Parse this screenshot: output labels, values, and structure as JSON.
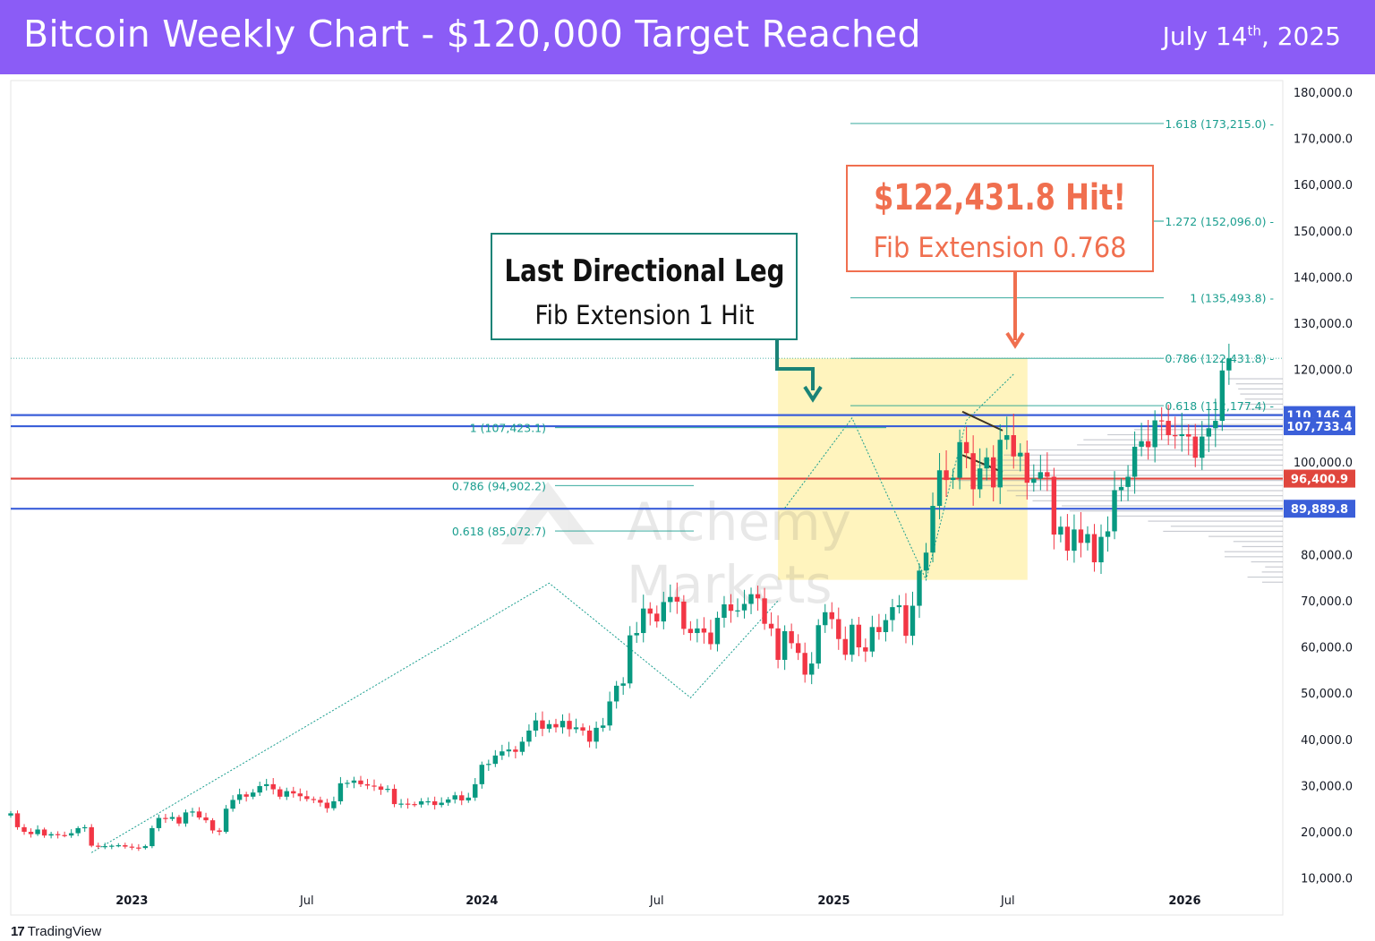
{
  "header": {
    "title": "Bitcoin Weekly Chart - $120,000 Target Reached",
    "date_main": "July 14",
    "date_sup": "th",
    "date_year": ", 2025",
    "background": "#8b5cf6"
  },
  "footer": {
    "logo": "17",
    "brand": "TradingView"
  },
  "watermark": {
    "line1": "Alchemy",
    "line2": "Markets"
  },
  "annotations": {
    "left": {
      "title": "Last Directional Leg",
      "subtitle": "Fib Extension 1 Hit",
      "color": "#1a8377"
    },
    "right": {
      "title": "$122,431.8 Hit!",
      "subtitle": "Fib Extension 0.768",
      "color": "#f06f4f"
    }
  },
  "chart_data": {
    "type": "candlestick",
    "x_ticks": [
      "2023",
      "Jul",
      "2024",
      "Jul",
      "2025",
      "Jul",
      "2026"
    ],
    "y_ticks": [
      "10,000.0",
      "20,000.0",
      "30,000.0",
      "40,000.0",
      "50,000.0",
      "60,000.0",
      "70,000.0",
      "80,000.0",
      "100,000.0",
      "120,000.0",
      "130,000.0",
      "140,000.0",
      "150,000.0",
      "160,000.0",
      "170,000.0",
      "180,000.0"
    ],
    "y_tick_values": [
      10000,
      20000,
      30000,
      40000,
      50000,
      60000,
      70000,
      80000,
      100000,
      120000,
      130000,
      140000,
      150000,
      160000,
      170000,
      180000
    ],
    "ylim": [
      2000,
      182500
    ],
    "xlim": [
      "2022-08-29",
      "2026-04-13"
    ],
    "colors": {
      "up": "#089981",
      "down": "#f23645",
      "fib": "#1a9e8f"
    },
    "price_lines": [
      {
        "label": "110,146.4",
        "value": 110146.4,
        "color": "#3b5fd9"
      },
      {
        "label": "107,733.4",
        "value": 107733.4,
        "color": "#3b5fd9"
      },
      {
        "label": "96,400.9",
        "value": 96400.9,
        "color": "#e0463d"
      },
      {
        "label": "89,889.8",
        "value": 89889.8,
        "color": "#3b5fd9"
      }
    ],
    "fib_left": [
      {
        "label": "1 (107,423.1)",
        "value": 107423.1
      },
      {
        "label": "0.786 (94,902.2)",
        "value": 94902.2
      },
      {
        "label": "0.618 (85,072.7)",
        "value": 85072.7
      }
    ],
    "fib_right": [
      {
        "label": "1.618 (173,215.0)",
        "value": 173215.0
      },
      {
        "label": "1.272 (152,096.0)",
        "value": 152096.0
      },
      {
        "label": "1 (135,493.8)",
        "value": 135493.8
      },
      {
        "label": "0.786 (122,431.8)",
        "value": 122431.8
      },
      {
        "label": "0.618 (112,177.4)",
        "value": 112177.4
      }
    ],
    "highlight_range": {
      "x": [
        "2024-11-04",
        "2025-07-14"
      ],
      "y": [
        74500,
        122400
      ]
    },
    "zigzag_left": [
      [
        "2022-11-21",
        15500
      ],
      [
        "2024-03-11",
        73800
      ],
      [
        "2024-08-05",
        49000
      ],
      [
        "2024-11-04",
        70000
      ]
    ],
    "zigzag_right": [
      [
        "2024-11-11",
        90000
      ],
      [
        "2025-01-20",
        109500
      ],
      [
        "2025-04-07",
        74500
      ],
      [
        "2025-05-19",
        109000
      ],
      [
        "2025-07-07",
        119000
      ]
    ],
    "weekly_closes": [
      24000,
      21000,
      20000,
      19500,
      20500,
      19200,
      19500,
      19300,
      19200,
      19700,
      20800,
      21000,
      17000,
      16800,
      16900,
      17000,
      17100,
      16800,
      16600,
      16500,
      16900,
      20800,
      23000,
      22800,
      23200,
      21800,
      24200,
      24400,
      23100,
      22500,
      20300,
      20000,
      25000,
      26900,
      28100,
      27600,
      28500,
      29900,
      30300,
      29200,
      27600,
      28800,
      28300,
      27700,
      27100,
      26900,
      26300,
      25100,
      26600,
      30500,
      30600,
      31100,
      30300,
      30000,
      29800,
      29100,
      29300,
      26000,
      26100,
      26000,
      25900,
      26600,
      26600,
      25800,
      26300,
      27000,
      27900,
      26800,
      27400,
      30300,
      34500,
      34700,
      36500,
      37400,
      37800,
      37300,
      39500,
      41900,
      44100,
      42300,
      43300,
      42600,
      44000,
      42200,
      42600,
      41900,
      39500,
      42500,
      43000,
      48200,
      51600,
      52100,
      62500,
      63000,
      68300,
      67200,
      65500,
      69700,
      70800,
      69800,
      63900,
      63000,
      64000,
      63100,
      60600,
      66300,
      69200,
      67800,
      67900,
      69300,
      71400,
      70500,
      65000,
      64000,
      57200,
      63400,
      60800,
      58700,
      54000,
      56400,
      64700,
      67500,
      66000,
      61700,
      58300,
      64800,
      59900,
      59000,
      64300,
      63200,
      65800,
      68600,
      69000,
      62400,
      68900,
      76500,
      80400,
      90500,
      98200,
      96100,
      96600,
      104300,
      101900,
      94100,
      98600,
      101000,
      94500,
      104800,
      105800,
      101200,
      102000,
      95500,
      96400,
      97800,
      96800,
      84300,
      86000,
      80800,
      85400,
      82500,
      84400,
      78300,
      83800,
      85000,
      93900,
      94600,
      96800,
      103300,
      104500,
      103200,
      109000,
      108900,
      105800,
      105600,
      106000,
      105500,
      100900,
      105500,
      107300,
      108900,
      119800,
      122400
    ],
    "volume_profile_note": "price histogram shown at right edge"
  }
}
